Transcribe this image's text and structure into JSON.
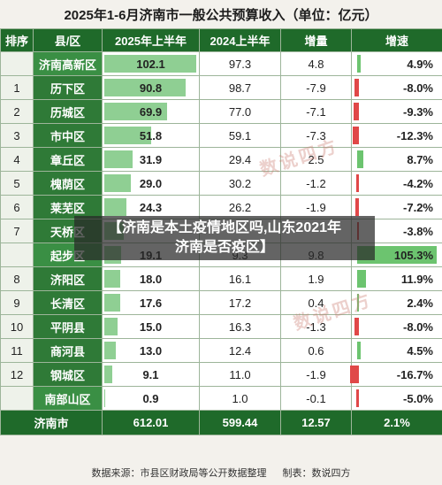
{
  "title": "2025年1-6月济南市一般公共预算收入（单位：亿元）",
  "headers": [
    "排序",
    "县/区",
    "2025年上半年",
    "2024上半年",
    "增量",
    "增速"
  ],
  "rows": [
    {
      "rank": "",
      "district": "济南高新区",
      "cur": "102.1",
      "prev": "97.3",
      "inc": "4.8",
      "rate": "4.9%",
      "rate_num": 4.9,
      "cur_num": 102.1
    },
    {
      "rank": "1",
      "district": "历下区",
      "cur": "90.8",
      "prev": "98.7",
      "inc": "-7.9",
      "rate": "-8.0%",
      "rate_num": -8.0,
      "cur_num": 90.8
    },
    {
      "rank": "2",
      "district": "历城区",
      "cur": "69.9",
      "prev": "77.0",
      "inc": "-7.1",
      "rate": "-9.3%",
      "rate_num": -9.3,
      "cur_num": 69.9
    },
    {
      "rank": "3",
      "district": "市中区",
      "cur": "51.8",
      "prev": "59.1",
      "inc": "-7.3",
      "rate": "-12.3%",
      "rate_num": -12.3,
      "cur_num": 51.8
    },
    {
      "rank": "4",
      "district": "章丘区",
      "cur": "31.9",
      "prev": "29.4",
      "inc": "2.5",
      "rate": "8.7%",
      "rate_num": 8.7,
      "cur_num": 31.9
    },
    {
      "rank": "5",
      "district": "槐荫区",
      "cur": "29.0",
      "prev": "30.2",
      "inc": "-1.2",
      "rate": "-4.2%",
      "rate_num": -4.2,
      "cur_num": 29.0
    },
    {
      "rank": "6",
      "district": "莱芜区",
      "cur": "24.3",
      "prev": "26.2",
      "inc": "-1.9",
      "rate": "-7.2%",
      "rate_num": -7.2,
      "cur_num": 24.3
    },
    {
      "rank": "7",
      "district": "天桥区",
      "cur": "",
      "prev": "",
      "inc": "",
      "rate": "-3.8%",
      "rate_num": -3.8,
      "cur_num": 22.0
    },
    {
      "rank": "",
      "district": "起步区",
      "cur": "19.1",
      "prev": "9.3",
      "inc": "9.8",
      "rate": "105.3%",
      "rate_num": 105.3,
      "cur_num": 19.1
    },
    {
      "rank": "8",
      "district": "济阳区",
      "cur": "18.0",
      "prev": "16.1",
      "inc": "1.9",
      "rate": "11.9%",
      "rate_num": 11.9,
      "cur_num": 18.0
    },
    {
      "rank": "9",
      "district": "长清区",
      "cur": "17.6",
      "prev": "17.2",
      "inc": "0.4",
      "rate": "2.4%",
      "rate_num": 2.4,
      "cur_num": 17.6
    },
    {
      "rank": "10",
      "district": "平阴县",
      "cur": "15.0",
      "prev": "16.3",
      "inc": "-1.3",
      "rate": "-8.0%",
      "rate_num": -8.0,
      "cur_num": 15.0
    },
    {
      "rank": "11",
      "district": "商河县",
      "cur": "13.0",
      "prev": "12.4",
      "inc": "0.6",
      "rate": "4.5%",
      "rate_num": 4.5,
      "cur_num": 13.0
    },
    {
      "rank": "12",
      "district": "钢城区",
      "cur": "9.1",
      "prev": "11.0",
      "inc": "-1.9",
      "rate": "-16.7%",
      "rate_num": -16.7,
      "cur_num": 9.1
    },
    {
      "rank": "",
      "district": "南部山区",
      "cur": "0.9",
      "prev": "1.0",
      "inc": "-0.1",
      "rate": "-5.0%",
      "rate_num": -5.0,
      "cur_num": 0.9
    }
  ],
  "total": {
    "label": "济南市",
    "cur": "612.01",
    "prev": "599.44",
    "inc": "12.57",
    "rate": "2.1%"
  },
  "footer": {
    "source": "数据来源：市县区财政局等公开数据整理",
    "maker": "制表：数说四方"
  },
  "watermark": "数说四方",
  "banner": {
    "line1": "【济南是本土疫情地区吗,山东2021年",
    "line2": "济南是否疫区】"
  },
  "colors": {
    "header": "#1f6a2a",
    "bar_green": "#8fcf93",
    "neg_red": "#e04848",
    "pos_green": "#6cc46f"
  }
}
